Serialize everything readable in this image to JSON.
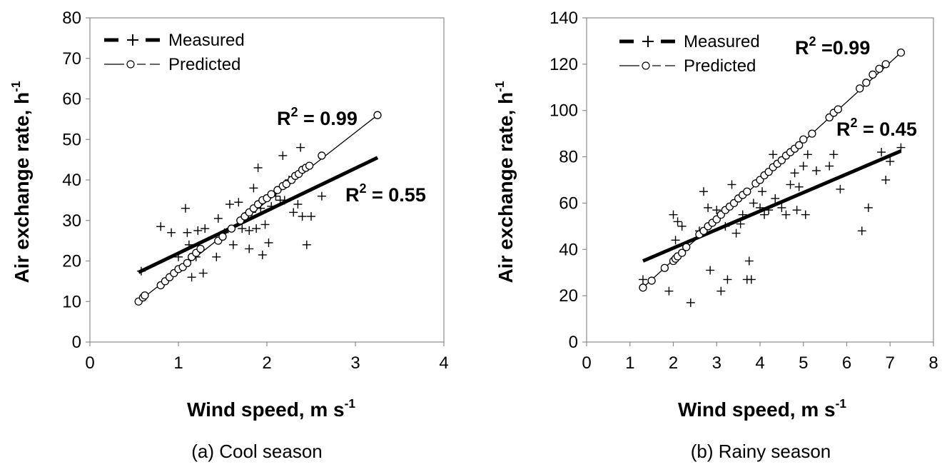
{
  "chart_data": [
    {
      "type": "scatter",
      "panel": "a",
      "caption": "(a) Cool season",
      "xlabel": "Wind speed, m s",
      "xlabel_sup": "-1",
      "ylabel": "Air exchange rate, h",
      "ylabel_sup": "-1",
      "xlim": [
        0,
        4
      ],
      "ylim": [
        0,
        80
      ],
      "xticks": [
        "0",
        "1",
        "2",
        "3",
        "4"
      ],
      "yticks": [
        "0",
        "10",
        "20",
        "30",
        "40",
        "50",
        "60",
        "70",
        "80"
      ],
      "grid": false,
      "legend_position": "top-left",
      "legend": [
        {
          "label": "Measured",
          "style": "bold dashed line with plus markers"
        },
        {
          "label": "Predicted",
          "style": "thin dashed line with open circle markers"
        }
      ],
      "annotations": [
        {
          "text": "R",
          "sup": "2",
          "suffix": " = 0.99"
        },
        {
          "text": "R",
          "sup": "2",
          "suffix": " = 0.55"
        }
      ],
      "series": [
        {
          "name": "Measured",
          "marker": "plus",
          "points": [
            [
              0.58,
              17.5
            ],
            [
              0.8,
              28.5
            ],
            [
              0.92,
              27
            ],
            [
              1.0,
              21
            ],
            [
              1.08,
              33
            ],
            [
              1.1,
              27
            ],
            [
              1.12,
              24
            ],
            [
              1.15,
              16
            ],
            [
              1.2,
              21
            ],
            [
              1.22,
              27.5
            ],
            [
              1.28,
              17
            ],
            [
              1.3,
              28
            ],
            [
              1.43,
              21
            ],
            [
              1.45,
              30.5
            ],
            [
              1.52,
              27
            ],
            [
              1.58,
              34
            ],
            [
              1.62,
              24
            ],
            [
              1.68,
              34.5
            ],
            [
              1.72,
              28
            ],
            [
              1.75,
              31
            ],
            [
              1.8,
              23
            ],
            [
              1.8,
              27.5
            ],
            [
              1.83,
              32
            ],
            [
              1.85,
              38
            ],
            [
              1.88,
              28
            ],
            [
              1.9,
              43
            ],
            [
              1.93,
              33
            ],
            [
              1.95,
              21.5
            ],
            [
              1.98,
              29
            ],
            [
              2.02,
              24.5
            ],
            [
              2.05,
              33.5
            ],
            [
              2.1,
              36
            ],
            [
              2.15,
              35
            ],
            [
              2.18,
              46
            ],
            [
              2.2,
              35
            ],
            [
              2.22,
              39
            ],
            [
              2.25,
              40
            ],
            [
              2.3,
              32
            ],
            [
              2.35,
              34
            ],
            [
              2.38,
              48
            ],
            [
              2.4,
              31
            ],
            [
              2.45,
              24
            ],
            [
              2.5,
              31
            ],
            [
              2.62,
              36
            ]
          ],
          "fit": {
            "x": [
              0.55,
              3.25
            ],
            "y": [
              17.2,
              45.5
            ],
            "r2": 0.55
          }
        },
        {
          "name": "Predicted",
          "marker": "circle",
          "points": [
            [
              0.55,
              10
            ],
            [
              0.6,
              11
            ],
            [
              0.62,
              11.5
            ],
            [
              0.8,
              14
            ],
            [
              0.85,
              15
            ],
            [
              0.9,
              16
            ],
            [
              0.95,
              17
            ],
            [
              1.0,
              18
            ],
            [
              1.05,
              18.5
            ],
            [
              1.1,
              19.5
            ],
            [
              1.15,
              21
            ],
            [
              1.2,
              22
            ],
            [
              1.25,
              23
            ],
            [
              1.45,
              25
            ],
            [
              1.5,
              26
            ],
            [
              1.6,
              28
            ],
            [
              1.7,
              30
            ],
            [
              1.75,
              31
            ],
            [
              1.8,
              32
            ],
            [
              1.85,
              33
            ],
            [
              1.9,
              34
            ],
            [
              1.95,
              35
            ],
            [
              2.0,
              35.5
            ],
            [
              2.05,
              36.5
            ],
            [
              2.12,
              37.5
            ],
            [
              2.18,
              38.5
            ],
            [
              2.22,
              39
            ],
            [
              2.28,
              40
            ],
            [
              2.32,
              41
            ],
            [
              2.36,
              41.5
            ],
            [
              2.4,
              42.5
            ],
            [
              2.44,
              43
            ],
            [
              2.48,
              43.5
            ],
            [
              2.62,
              46
            ],
            [
              3.25,
              56
            ]
          ],
          "fit": {
            "x": [
              0.55,
              3.25
            ],
            "y": [
              10,
              56
            ],
            "r2": 0.99
          }
        }
      ]
    },
    {
      "type": "scatter",
      "panel": "b",
      "caption": "(b) Rainy season",
      "xlabel": "Wind speed, m s",
      "xlabel_sup": "-1",
      "ylabel": "Air exchange rate, h",
      "ylabel_sup": "-1",
      "xlim": [
        0,
        8
      ],
      "ylim": [
        0,
        140
      ],
      "xticks": [
        "0",
        "1",
        "2",
        "3",
        "4",
        "5",
        "6",
        "7",
        "8"
      ],
      "yticks": [
        "0",
        "20",
        "40",
        "60",
        "80",
        "100",
        "120",
        "140"
      ],
      "grid": false,
      "legend_position": "top-left",
      "legend": [
        {
          "label": "Measured",
          "style": "bold dashed line with plus markers"
        },
        {
          "label": "Predicted",
          "style": "thin dashed line with open circle markers"
        }
      ],
      "annotations": [
        {
          "text": "R",
          "sup": "2",
          "suffix": " =0.99"
        },
        {
          "text": "R",
          "sup": "2",
          "suffix": " = 0.45"
        }
      ],
      "series": [
        {
          "name": "Measured",
          "marker": "plus",
          "points": [
            [
              1.3,
              27
            ],
            [
              1.9,
              22
            ],
            [
              2.0,
              55
            ],
            [
              2.05,
              44
            ],
            [
              2.1,
              52
            ],
            [
              2.2,
              50
            ],
            [
              2.4,
              17
            ],
            [
              2.6,
              48
            ],
            [
              2.7,
              65
            ],
            [
              2.8,
              58
            ],
            [
              2.85,
              31
            ],
            [
              3.0,
              57
            ],
            [
              3.05,
              54
            ],
            [
              3.1,
              22
            ],
            [
              3.2,
              50
            ],
            [
              3.25,
              27
            ],
            [
              3.35,
              68
            ],
            [
              3.45,
              47
            ],
            [
              3.55,
              51
            ],
            [
              3.6,
              55
            ],
            [
              3.7,
              27
            ],
            [
              3.75,
              35
            ],
            [
              3.8,
              27
            ],
            [
              3.85,
              60
            ],
            [
              4.0,
              58
            ],
            [
              4.05,
              65
            ],
            [
              4.1,
              55
            ],
            [
              4.2,
              57
            ],
            [
              4.3,
              81
            ],
            [
              4.35,
              62
            ],
            [
              4.5,
              58
            ],
            [
              4.6,
              55
            ],
            [
              4.7,
              68
            ],
            [
              4.8,
              73
            ],
            [
              4.85,
              57
            ],
            [
              4.9,
              67
            ],
            [
              5.0,
              76
            ],
            [
              5.05,
              55
            ],
            [
              5.1,
              81
            ],
            [
              5.3,
              74
            ],
            [
              5.6,
              76
            ],
            [
              5.7,
              81
            ],
            [
              5.85,
              66
            ],
            [
              6.35,
              48
            ],
            [
              6.5,
              58
            ],
            [
              6.8,
              82
            ],
            [
              6.9,
              70
            ],
            [
              7.0,
              78
            ],
            [
              7.25,
              84
            ]
          ],
          "fit": {
            "x": [
              1.3,
              7.25
            ],
            "y": [
              35,
              82.5
            ],
            "r2": 0.45
          }
        },
        {
          "name": "Predicted",
          "marker": "circle",
          "points": [
            [
              1.3,
              23.5
            ],
            [
              1.5,
              26.5
            ],
            [
              1.8,
              32
            ],
            [
              2.0,
              35
            ],
            [
              2.05,
              36
            ],
            [
              2.1,
              37
            ],
            [
              2.2,
              38.5
            ],
            [
              2.3,
              41
            ],
            [
              2.6,
              46.5
            ],
            [
              2.7,
              48
            ],
            [
              2.8,
              50
            ],
            [
              2.9,
              51.5
            ],
            [
              3.0,
              53
            ],
            [
              3.1,
              55
            ],
            [
              3.2,
              57
            ],
            [
              3.3,
              58.5
            ],
            [
              3.4,
              60
            ],
            [
              3.5,
              62
            ],
            [
              3.6,
              63.5
            ],
            [
              3.7,
              65
            ],
            [
              3.9,
              68.5
            ],
            [
              4.0,
              70
            ],
            [
              4.1,
              72
            ],
            [
              4.2,
              73.5
            ],
            [
              4.3,
              75.5
            ],
            [
              4.4,
              77
            ],
            [
              4.5,
              78.5
            ],
            [
              4.6,
              80.5
            ],
            [
              4.7,
              82
            ],
            [
              4.8,
              83.5
            ],
            [
              4.9,
              85
            ],
            [
              5.0,
              87.5
            ],
            [
              5.2,
              90
            ],
            [
              5.6,
              97
            ],
            [
              5.7,
              99
            ],
            [
              5.8,
              100.5
            ],
            [
              6.3,
              109.5
            ],
            [
              6.45,
              112
            ],
            [
              6.6,
              115.5
            ],
            [
              6.75,
              118
            ],
            [
              6.9,
              120
            ],
            [
              7.25,
              125
            ]
          ],
          "fit": {
            "x": [
              1.3,
              7.25
            ],
            "y": [
              23.5,
              125
            ],
            "r2": 0.99
          }
        }
      ]
    }
  ]
}
